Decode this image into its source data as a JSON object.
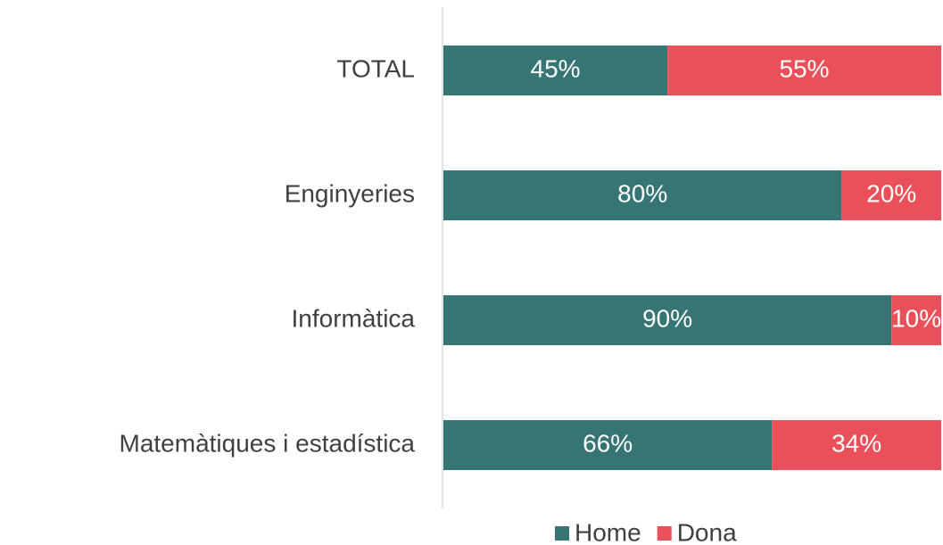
{
  "chart_data": {
    "type": "stacked-bar-horizontal",
    "categories": [
      "TOTAL",
      "Enginyeries",
      "Informàtica",
      "Matemàtiques i estadística"
    ],
    "series": [
      {
        "name": "Home",
        "color": "#357675",
        "values": [
          45,
          80,
          90,
          66
        ],
        "value_labels": [
          "45%",
          "80%",
          "90%",
          "66%"
        ]
      },
      {
        "name": "Dona",
        "color": "#e9505a",
        "values": [
          55,
          20,
          10,
          34
        ],
        "value_labels": [
          "55%",
          "20%",
          "10%",
          "34%"
        ]
      }
    ],
    "xlim": [
      0,
      100
    ],
    "legend": "bottom"
  }
}
